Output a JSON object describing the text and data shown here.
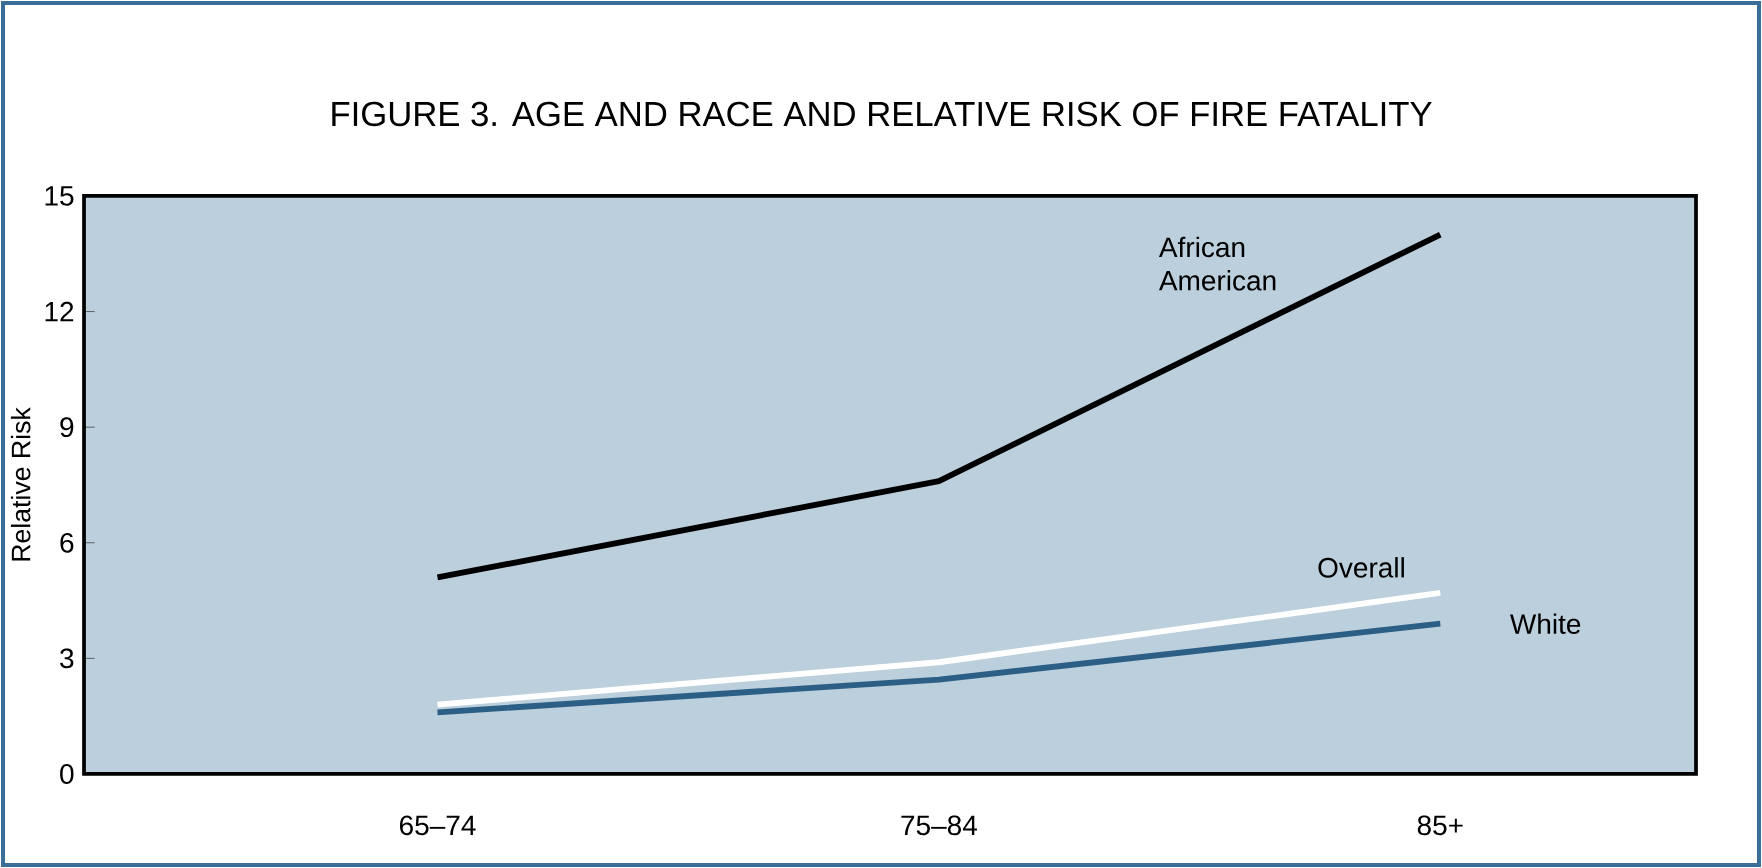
{
  "chart_data": {
    "type": "line",
    "title": "FIGURE 3.  AGE AND RACE AND RELATIVE RISK OF FIRE FATALITY",
    "ylabel": "Relative Risk",
    "categories": [
      "65–74",
      "75–84",
      "85+"
    ],
    "series": [
      {
        "name": "African American",
        "color": "#000000",
        "values": [
          5.1,
          7.6,
          14.0
        ]
      },
      {
        "name": "Overall",
        "color": "#ffffff",
        "values": [
          1.8,
          2.9,
          4.7
        ]
      },
      {
        "name": "White",
        "color": "#2b5f86",
        "values": [
          1.6,
          2.45,
          3.9
        ]
      }
    ],
    "ylim": [
      0,
      15
    ],
    "yticks": [
      0,
      3,
      6,
      9,
      12,
      15
    ],
    "grid": false,
    "marker": "none",
    "line_style": "solid"
  }
}
